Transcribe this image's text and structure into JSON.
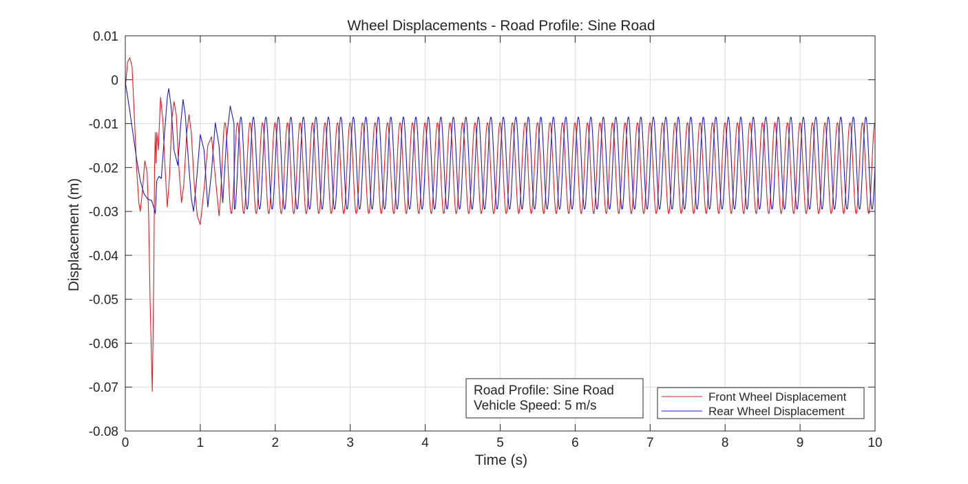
{
  "chart_data": {
    "type": "line",
    "title": "Wheel Displacements - Road Profile: Sine Road",
    "xlabel": "Time (s)",
    "ylabel": "Displacement (m)",
    "xlim": [
      0,
      10
    ],
    "ylim": [
      -0.08,
      0.01
    ],
    "xticks": [
      0,
      1,
      2,
      3,
      4,
      5,
      6,
      7,
      8,
      9,
      10
    ],
    "xtick_labels": [
      "0",
      "1",
      "2",
      "3",
      "4",
      "5",
      "6",
      "7",
      "8",
      "9",
      "10"
    ],
    "yticks": [
      0.01,
      0,
      -0.01,
      -0.02,
      -0.03,
      -0.04,
      -0.05,
      -0.06,
      -0.07,
      -0.08
    ],
    "ytick_labels": [
      "0.01",
      "0",
      "-0.01",
      "-0.02",
      "-0.03",
      "-0.04",
      "-0.05",
      "-0.06",
      "-0.07",
      "-0.08"
    ],
    "grid": true,
    "legend_position": "bottom-right",
    "series": [
      {
        "name": "Front Wheel Displacement",
        "color": "#e41a1c",
        "points": [
          [
            0,
            -0.002
          ],
          [
            0.03,
            0.004
          ],
          [
            0.06,
            0.005
          ],
          [
            0.09,
            0.003
          ],
          [
            0.12,
            -0.008
          ],
          [
            0.15,
            -0.02
          ],
          [
            0.18,
            -0.028
          ],
          [
            0.2,
            -0.03
          ],
          [
            0.23,
            -0.025
          ],
          [
            0.26,
            -0.0185
          ],
          [
            0.29,
            -0.021
          ],
          [
            0.31,
            -0.03
          ],
          [
            0.33,
            -0.05
          ],
          [
            0.36,
            -0.071
          ],
          [
            0.38,
            -0.045
          ],
          [
            0.39,
            -0.02
          ],
          [
            0.4,
            -0.012
          ],
          [
            0.41,
            -0.019
          ],
          [
            0.42,
            -0.012
          ],
          [
            0.44,
            -0.016
          ],
          [
            0.47,
            -0.004
          ],
          [
            0.5,
            -0.009
          ],
          [
            0.53,
            -0.02
          ],
          [
            0.56,
            -0.029
          ],
          [
            0.59,
            -0.022
          ],
          [
            0.62,
            -0.009
          ],
          [
            0.65,
            -0.005
          ],
          [
            0.68,
            -0.008
          ],
          [
            0.71,
            -0.019
          ],
          [
            0.75,
            -0.028
          ],
          [
            0.78,
            -0.024
          ],
          [
            0.82,
            -0.012
          ],
          [
            0.85,
            -0.008
          ],
          [
            0.88,
            -0.012
          ],
          [
            0.92,
            -0.024
          ],
          [
            0.96,
            -0.031
          ],
          [
            1.0,
            -0.033
          ],
          [
            1.05,
            -0.025
          ],
          [
            1.1,
            -0.015
          ],
          [
            1.15,
            -0.013
          ],
          [
            1.2,
            -0.022
          ],
          [
            1.25,
            -0.031
          ]
        ],
        "periodic": {
          "start": 1.25,
          "end": 10,
          "period": 0.1667,
          "max": -0.0098,
          "min": -0.0305,
          "phase_of_max": 1.33
        }
      },
      {
        "name": "Rear Wheel Displacement",
        "color": "#1a1acc",
        "points": [
          [
            0,
            -0.0005
          ],
          [
            0.05,
            -0.006
          ],
          [
            0.1,
            -0.012
          ],
          [
            0.15,
            -0.018
          ],
          [
            0.2,
            -0.023
          ],
          [
            0.25,
            -0.026
          ],
          [
            0.3,
            -0.0272
          ],
          [
            0.35,
            -0.0275
          ],
          [
            0.38,
            -0.029
          ],
          [
            0.4,
            -0.0305
          ],
          [
            0.42,
            -0.023
          ],
          [
            0.45,
            -0.022
          ],
          [
            0.48,
            -0.0225
          ],
          [
            0.52,
            -0.013
          ],
          [
            0.56,
            -0.004
          ],
          [
            0.58,
            -0.002
          ],
          [
            0.61,
            -0.006
          ],
          [
            0.65,
            -0.016
          ],
          [
            0.7,
            -0.0195
          ],
          [
            0.74,
            -0.01
          ],
          [
            0.77,
            -0.0045
          ],
          [
            0.8,
            -0.008
          ],
          [
            0.84,
            -0.018
          ],
          [
            0.88,
            -0.027
          ],
          [
            0.91,
            -0.03
          ],
          [
            0.95,
            -0.023
          ],
          [
            1.0,
            -0.0125
          ],
          [
            1.05,
            -0.016
          ],
          [
            1.1,
            -0.029
          ],
          [
            1.15,
            -0.021
          ],
          [
            1.2,
            -0.0098
          ],
          [
            1.25,
            -0.015
          ],
          [
            1.3,
            -0.028
          ],
          [
            1.35,
            -0.0135
          ],
          [
            1.4,
            -0.006
          ],
          [
            1.45,
            -0.01
          ]
        ],
        "periodic": {
          "start": 1.45,
          "end": 10,
          "period": 0.1667,
          "max": -0.0085,
          "min": -0.0295,
          "phase_of_max": 1.375
        }
      }
    ],
    "annotation": {
      "lines": [
        "Road Profile: Sine Road",
        "Vehicle Speed: 5 m/s"
      ],
      "position": "bottom-center"
    }
  }
}
